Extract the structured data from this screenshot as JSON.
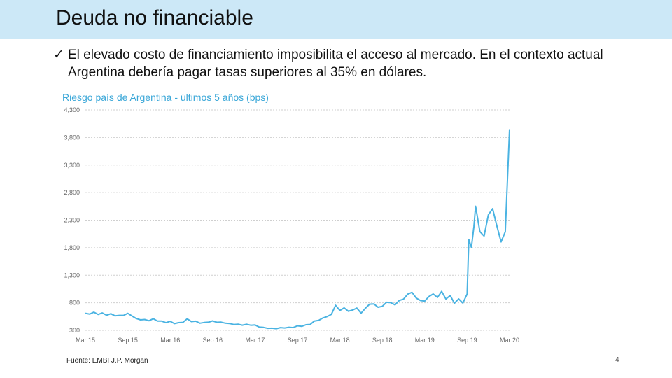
{
  "slide": {
    "title": "Deuda no financiable",
    "bullet_check": "✓",
    "bullet": "El elevado costo de financiamiento imposibilita el acceso al mercado. En el contexto actual Argentina debería pagar tasas superiores al 35% en dólares.",
    "source": "Fuente: EMBI J.P. Morgan",
    "page_number": "4",
    "colors": {
      "title_bar": "#cce8f7",
      "series": "#4ab3e2",
      "chart_title": "#3aa7d8"
    }
  },
  "chart_data": {
    "type": "line",
    "title": "Riesgo país de Argentina - últimos 5 años (bps)",
    "xlabel": "",
    "ylabel": "",
    "ylim": [
      300,
      4300
    ],
    "y_ticks": [
      4300,
      3800,
      3300,
      2800,
      2300,
      1800,
      1300,
      800,
      300
    ],
    "y_tick_labels": [
      "4,300",
      "3,800",
      "3,300",
      "2,800",
      "2,300",
      "1,800",
      "1,300",
      "800",
      "300"
    ],
    "x_tick_labels": [
      "Mar 15",
      "Sep 15",
      "Mar 16",
      "Sep 16",
      "Mar 17",
      "Sep 17",
      "Mar 18",
      "Sep 18",
      "Mar 19",
      "Sep 19",
      "Mar 20"
    ],
    "grid": true,
    "series": [
      {
        "x": [
          0.0,
          0.05,
          0.1,
          0.15,
          0.2,
          0.25,
          0.3,
          0.35,
          0.4,
          0.45,
          0.5,
          0.55,
          0.6,
          0.65,
          0.7,
          0.75,
          0.8,
          0.85,
          0.9,
          0.95,
          1.0,
          1.05,
          1.1,
          1.15,
          1.2,
          1.25,
          1.3,
          1.35,
          1.4,
          1.45,
          1.5,
          1.55,
          1.6,
          1.65,
          1.7,
          1.75,
          1.8,
          1.85,
          1.9,
          1.95,
          2.0,
          2.05,
          2.1,
          2.15,
          2.2,
          2.25,
          2.3,
          2.35,
          2.4,
          2.45,
          2.5,
          2.55,
          2.6,
          2.65,
          2.7,
          2.75,
          2.8,
          2.85,
          2.9,
          2.95,
          3.0,
          3.05,
          3.1,
          3.15,
          3.2,
          3.25,
          3.3,
          3.35,
          3.4,
          3.45,
          3.5,
          3.55,
          3.6,
          3.65,
          3.7,
          3.75,
          3.8,
          3.85,
          3.9,
          3.95,
          4.0,
          4.05,
          4.1,
          4.15,
          4.2,
          4.25,
          4.3,
          4.35,
          4.4,
          4.45,
          4.5,
          4.52,
          4.55,
          4.58,
          4.6,
          4.65,
          4.7,
          4.75,
          4.8,
          4.85,
          4.9,
          4.95,
          5.0
        ],
        "values": [
          610,
          600,
          620,
          590,
          610,
          585,
          600,
          570,
          560,
          575,
          600,
          560,
          510,
          500,
          495,
          480,
          500,
          470,
          460,
          450,
          460,
          430,
          440,
          450,
          500,
          460,
          460,
          440,
          440,
          455,
          460,
          450,
          440,
          430,
          420,
          415,
          410,
          400,
          400,
          395,
          390,
          370,
          350,
          345,
          340,
          335,
          340,
          345,
          350,
          360,
          380,
          380,
          390,
          410,
          460,
          480,
          520,
          560,
          590,
          760,
          650,
          710,
          640,
          680,
          700,
          620,
          700,
          780,
          770,
          720,
          730,
          820,
          800,
          770,
          830,
          870,
          950,
          990,
          880,
          850,
          830,
          920,
          950,
          900,
          1000,
          880,
          930,
          800,
          870,
          800,
          950,
          1950,
          1800,
          2200,
          2550,
          2100,
          2000,
          2400,
          2500,
          2200,
          1900,
          2100,
          3950
        ]
      }
    ]
  }
}
